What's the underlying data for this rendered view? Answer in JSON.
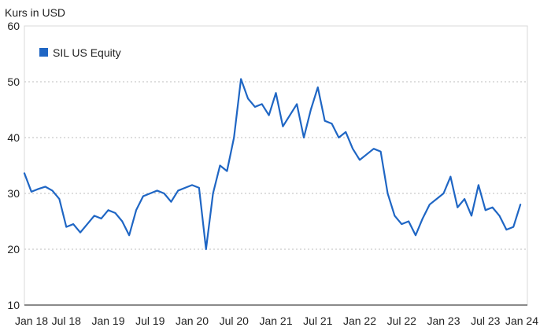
{
  "chart_data": {
    "type": "line",
    "ylabel": "Kurs in USD",
    "ylim": [
      10,
      60
    ],
    "yticks": [
      10,
      20,
      30,
      40,
      50,
      60
    ],
    "xlim": [
      "2018-01",
      "2024-01"
    ],
    "xticks": [
      "Jan 18",
      "Jul 18",
      "Jan 19",
      "Jul 19",
      "Jan 20",
      "Jul 20",
      "Jan 21",
      "Jul 21",
      "Jan 22",
      "Jul 22",
      "Jan 23",
      "Jul 23",
      "Jan 24"
    ],
    "grid": "horizontal dotted",
    "legend_position": "top-left",
    "series": [
      {
        "name": "SIL US Equity",
        "color": "#1f66c4",
        "x": [
          "2018-01",
          "2018-02",
          "2018-03",
          "2018-04",
          "2018-05",
          "2018-06",
          "2018-07",
          "2018-08",
          "2018-09",
          "2018-10",
          "2018-11",
          "2018-12",
          "2019-01",
          "2019-02",
          "2019-03",
          "2019-04",
          "2019-05",
          "2019-06",
          "2019-07",
          "2019-08",
          "2019-09",
          "2019-10",
          "2019-11",
          "2019-12",
          "2020-01",
          "2020-02",
          "2020-03",
          "2020-04",
          "2020-05",
          "2020-06",
          "2020-07",
          "2020-08",
          "2020-09",
          "2020-10",
          "2020-11",
          "2020-12",
          "2021-01",
          "2021-02",
          "2021-03",
          "2021-04",
          "2021-05",
          "2021-06",
          "2021-07",
          "2021-08",
          "2021-09",
          "2021-10",
          "2021-11",
          "2021-12",
          "2022-01",
          "2022-02",
          "2022-03",
          "2022-04",
          "2022-05",
          "2022-06",
          "2022-07",
          "2022-08",
          "2022-09",
          "2022-10",
          "2022-11",
          "2022-12",
          "2023-01",
          "2023-02",
          "2023-03",
          "2023-04",
          "2023-05",
          "2023-06",
          "2023-07",
          "2023-08",
          "2023-09",
          "2023-10",
          "2023-11",
          "2023-12"
        ],
        "values": [
          33.6,
          30.3,
          30.8,
          31.2,
          30.5,
          29.0,
          24.0,
          24.5,
          23.0,
          24.5,
          26.0,
          25.5,
          27.0,
          26.5,
          25.0,
          22.5,
          27.0,
          29.5,
          30.0,
          30.5,
          30.0,
          28.5,
          30.5,
          31.0,
          31.5,
          31.0,
          20.0,
          30.0,
          35.0,
          34.0,
          40.0,
          50.5,
          47.0,
          45.5,
          46.0,
          44.0,
          48.0,
          42.0,
          44.0,
          46.0,
          40.0,
          45.0,
          49.0,
          43.0,
          42.5,
          40.0,
          41.0,
          38.0,
          36.0,
          37.0,
          38.0,
          37.5,
          30.0,
          26.0,
          24.5,
          25.0,
          22.5,
          25.5,
          28.0,
          29.0,
          30.0,
          33.0,
          27.5,
          29.0,
          26.0,
          31.5,
          27.0,
          27.5,
          26.0,
          23.5,
          24.0,
          28.0
        ]
      }
    ]
  }
}
